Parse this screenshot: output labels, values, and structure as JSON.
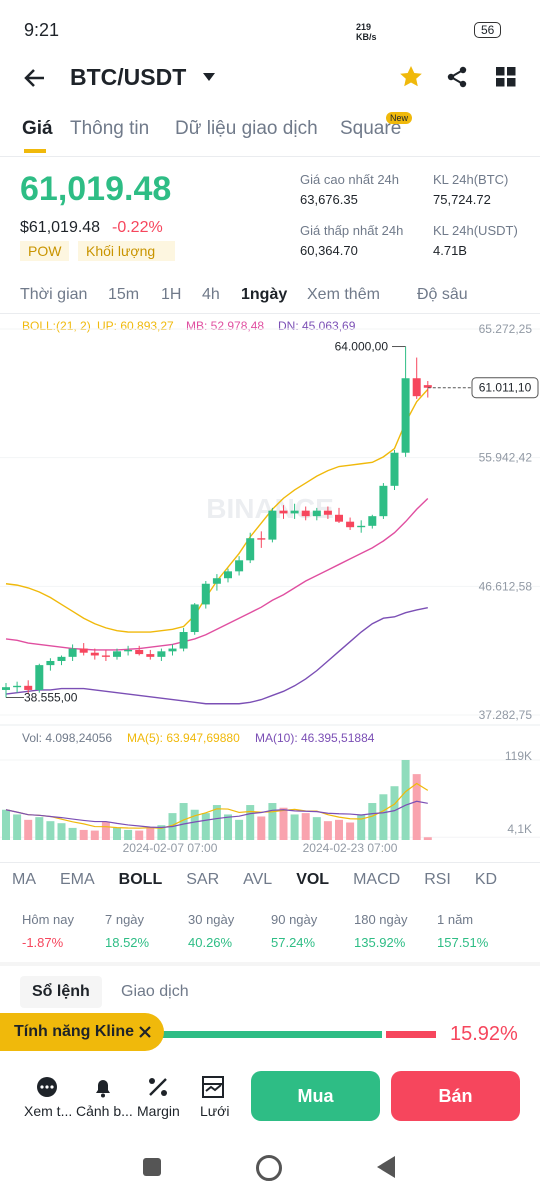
{
  "status_bar": {
    "time": "9:21",
    "speed": "219 KB/s",
    "battery": "56"
  },
  "header": {
    "title": "BTC/USDT"
  },
  "tabs": {
    "items": [
      "Giá",
      "Thông tin",
      "Dữ liệu giao dịch",
      "Square"
    ],
    "badge": "New"
  },
  "price": {
    "last": "61,019.48",
    "fiat": "$61,019.48",
    "change": "-0.22%",
    "tags": [
      "POW",
      "Khối lượng"
    ]
  },
  "stats": [
    {
      "label": "Giá cao nhất 24h",
      "value": "63,676.35"
    },
    {
      "label": "KL 24h(BTC)",
      "value": "75,724.72"
    },
    {
      "label": "Giá thấp nhất 24h",
      "value": "60,364.70"
    },
    {
      "label": "KL 24h(USDT)",
      "value": "4.71B"
    }
  ],
  "intervals": [
    "Thời gian",
    "15m",
    "1H",
    "4h",
    "1ngày",
    "Xem thêm",
    "Độ sâu"
  ],
  "chart": {
    "type": "candlestick",
    "watermark": "BINANCE",
    "legend": [
      "BOLL:(21, 2)",
      "UP: 60.893,27",
      "MB: 52.978,48",
      "DN: 45.063,69"
    ],
    "ylim": [
      36776,
      65923
    ],
    "yticks": [
      {
        "value": 65272.25,
        "label": "65.272,25"
      },
      {
        "value": 55942.42,
        "label": "55.942,42"
      },
      {
        "value": 46612.58,
        "label": "46.612,58"
      },
      {
        "value": 37282.75,
        "label": "37.282,75"
      }
    ],
    "max_label": {
      "value": 64000,
      "label": "64.000,00"
    },
    "min_label": {
      "value": 38555,
      "label": "38.555,00"
    },
    "current_label": {
      "value": 61011.1,
      "label": "61.011,10"
    },
    "candles": {
      "open": [
        39100,
        39300,
        39400,
        39100,
        40900,
        41200,
        41500,
        42100,
        41800,
        41600,
        41500,
        41900,
        42000,
        41700,
        41500,
        41900,
        42100,
        43300,
        45300,
        46800,
        47200,
        47700,
        48500,
        50100,
        50000,
        52100,
        51900,
        52100,
        51700,
        52100,
        51800,
        51300,
        50900,
        51000,
        51700,
        53900,
        56300,
        61700,
        61200
      ],
      "high": [
        39600,
        39700,
        39800,
        41000,
        41400,
        41600,
        42400,
        42500,
        42100,
        42000,
        42100,
        42300,
        42300,
        42000,
        42100,
        42400,
        43600,
        45400,
        47000,
        47500,
        47900,
        48800,
        50500,
        50600,
        52300,
        52500,
        52600,
        52400,
        52300,
        52400,
        52300,
        51600,
        51400,
        51800,
        54100,
        56500,
        64000,
        63200,
        61500
      ],
      "low": [
        38555,
        38900,
        38800,
        38900,
        40500,
        40900,
        41200,
        41600,
        41300,
        41200,
        41300,
        41600,
        41600,
        41300,
        41200,
        41600,
        41900,
        43100,
        45000,
        46300,
        46900,
        47400,
        48300,
        49400,
        49800,
        51500,
        51500,
        51400,
        51400,
        51500,
        51200,
        50700,
        50500,
        50800,
        51500,
        53600,
        56000,
        60200,
        60300
      ],
      "close": [
        39300,
        39400,
        39100,
        40900,
        41200,
        41500,
        42100,
        41800,
        41600,
        41500,
        41900,
        42000,
        41700,
        41500,
        41900,
        42100,
        43300,
        45300,
        46800,
        47200,
        47700,
        48500,
        50100,
        50000,
        52100,
        51900,
        52100,
        51700,
        52100,
        51800,
        51300,
        50900,
        51000,
        51700,
        53900,
        56300,
        61700,
        60400,
        61011.1
      ]
    },
    "boll": [
      {
        "name": "UP",
        "color": "#f0b90b",
        "values": [
          46800,
          46700,
          46500,
          46200,
          45800,
          45300,
          44800,
          44300,
          43900,
          43600,
          43400,
          43300,
          43300,
          43300,
          43400,
          43500,
          43700,
          44500,
          45800,
          47000,
          48000,
          49000,
          50200,
          51200,
          52200,
          53000,
          53600,
          54100,
          54600,
          55000,
          55300,
          55400,
          55500,
          55600,
          56000,
          56600,
          58500,
          60000,
          60893.27
        ]
      },
      {
        "name": "MB",
        "color": "#e04fa0",
        "values": [
          42800,
          42700,
          42500,
          42400,
          42300,
          42200,
          42100,
          42050,
          42000,
          42000,
          42000,
          42050,
          42100,
          42200,
          42300,
          42400,
          42600,
          42800,
          43100,
          43500,
          43900,
          44300,
          44700,
          45100,
          45600,
          46000,
          46500,
          47000,
          47400,
          47800,
          48200,
          48600,
          49000,
          49400,
          49900,
          50500,
          51300,
          52200,
          52978.48
        ]
      },
      {
        "name": "DN",
        "color": "#7b4fb5",
        "values": [
          38800,
          38900,
          39000,
          39100,
          39100,
          39200,
          39200,
          39200,
          39100,
          39000,
          38900,
          38800,
          38700,
          38600,
          38500,
          38400,
          38300,
          38200,
          38100,
          38100,
          38100,
          38100,
          38200,
          38400,
          38700,
          39000,
          39400,
          39900,
          40500,
          41200,
          41900,
          42600,
          43300,
          43900,
          44300,
          44400,
          44700,
          44900,
          45063.69
        ]
      }
    ]
  },
  "volume": {
    "legend": [
      "Vol: 4.098,24056",
      "MA(5): 63.947,69880",
      "MA(10): 46.395,51884"
    ],
    "ylim": [
      0,
      119000
    ],
    "yticks": [
      {
        "value": 119000,
        "label": "119K"
      },
      {
        "value": 4100,
        "label": "4,1K"
      }
    ],
    "values": [
      45000,
      38000,
      30000,
      34000,
      28000,
      25000,
      18000,
      15000,
      14000,
      27000,
      18000,
      15000,
      14000,
      18000,
      22000,
      40000,
      55000,
      45000,
      40000,
      52000,
      38000,
      30000,
      52000,
      35000,
      55000,
      48000,
      38000,
      40000,
      34000,
      28000,
      30000,
      26000,
      38000,
      55000,
      68000,
      80000,
      119000,
      98000,
      4098.24056
    ],
    "dates": [
      "2024-02-07 07:00",
      "2024-02-23 07:00"
    ]
  },
  "indicators": [
    "MA",
    "EMA",
    "BOLL",
    "SAR",
    "AVL",
    "VOL",
    "MACD",
    "RSI",
    "KD"
  ],
  "performance": [
    {
      "label": "Hôm nay",
      "value": "-1.87%"
    },
    {
      "label": "7 ngày",
      "value": "18.52%"
    },
    {
      "label": "30 ngày",
      "value": "40.26%"
    },
    {
      "label": "90 ngày",
      "value": "57.24%"
    },
    {
      "label": "180 ngày",
      "value": "135.92%"
    },
    {
      "label": "1 năm",
      "value": "157.51%"
    }
  ],
  "book": {
    "tabs": [
      "Sổ lệnh",
      "Giao dịch"
    ],
    "toast": "Tính năng Kline",
    "ratio": "15.92%"
  },
  "bottom": {
    "actions": [
      "Xem t...",
      "Cảnh b...",
      "Margin",
      "Lưới"
    ],
    "buy": "Mua",
    "sell": "Bán"
  }
}
